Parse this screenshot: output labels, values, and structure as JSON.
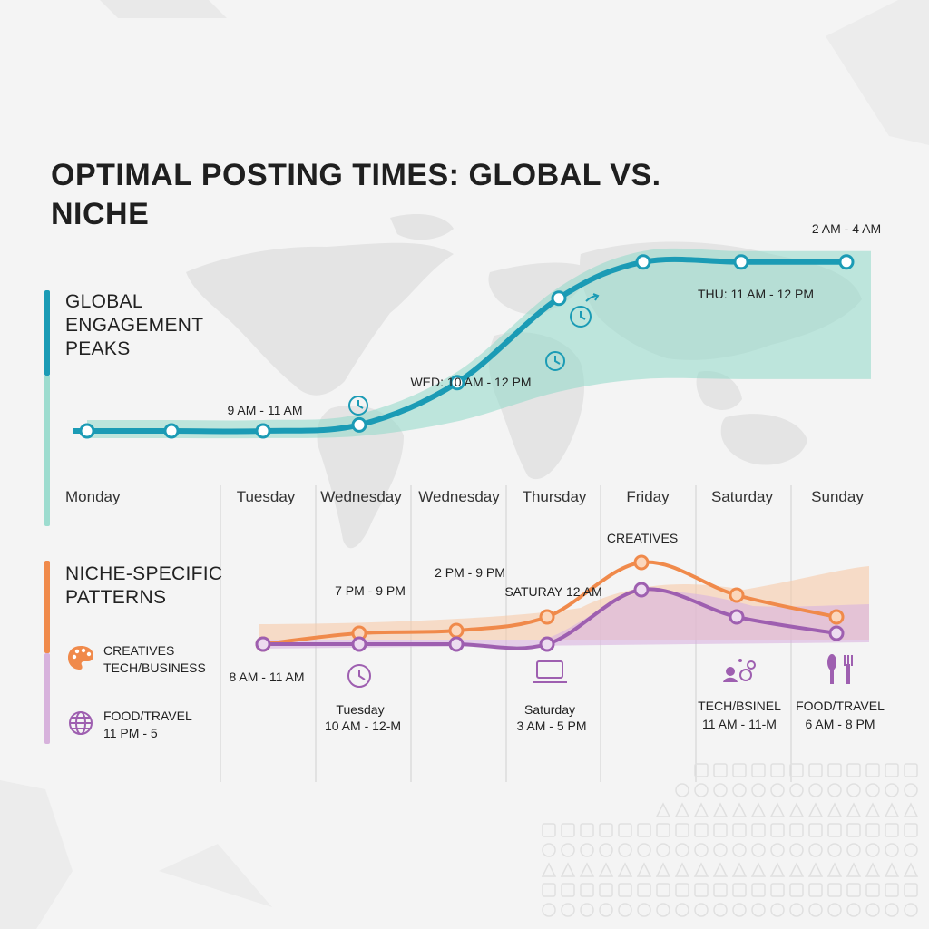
{
  "title": "OPTIMAL POSTING TIMES: GLOBAL VS. NICHE",
  "global_section": {
    "label": "GLOBAL ENGAGEMENT PEAKS",
    "accent": "#1b9bb5",
    "band": "#8fd8c8"
  },
  "niche_section": {
    "label": "NICHE-SPECIFIC PATTERNS",
    "accent": "#f08a4b",
    "accent2": "#9e5fb0"
  },
  "legend": [
    {
      "icon": "palette-icon",
      "lines": [
        "CREATIVES",
        "TECH/BUSINESS"
      ]
    },
    {
      "icon": "globe-icon",
      "lines": [
        "FOOD/TRAVEL",
        "11 PM - 5"
      ]
    }
  ],
  "chart_data": [
    {
      "type": "line",
      "title": "GLOBAL ENGAGEMENT PEAKS",
      "categories": [
        "Monday",
        "Tuesday",
        "Wednesday",
        "Wednesday",
        "Thursday",
        "Friday",
        "Saturday",
        "Sunday"
      ],
      "series": [
        {
          "values": [
            0,
            0,
            0,
            0.05,
            0.4,
            1.1,
            1.4,
            1.4
          ],
          "color": "#1b9bb5"
        }
      ],
      "annotations": [
        "9 AM - 11 AM",
        "WED: 10 AM - 12 PM",
        "THU: 11 AM - 12 PM",
        "2 AM - 4 AM"
      ],
      "grid": false
    },
    {
      "type": "line",
      "title": "NICHE-SPECIFIC PATTERNS",
      "categories": [
        "Monday",
        "Tuesday",
        "Wednesday",
        "Wednesday",
        "Thursday",
        "Friday",
        "Saturday",
        "Sunday"
      ],
      "series": [
        {
          "values": [
            0,
            0.2,
            0.25,
            0.25,
            0.5,
            1.5,
            0.9,
            0.5
          ],
          "color": "#f08a4b"
        },
        {
          "values": [
            0,
            0,
            0,
            0,
            0,
            1.0,
            0.5,
            0.2
          ],
          "color": "#9e5fb0"
        }
      ],
      "annotations": [
        "CREATIVES",
        "7 PM - 9 PM",
        "2 PM - 9 PM",
        "SATURAY 12 AM",
        "8 AM - 11 AM",
        "Tuesday",
        "10 AM - 12-M",
        "Saturday",
        "3 AM - 5 PM",
        "TECH/BSINEL",
        "11 AM - 11-M",
        "FOOD/TRAVEL",
        "6 AM - 8 PM"
      ],
      "grid": false
    }
  ],
  "day_labels": [
    "Monday",
    "Tuesday",
    "Wednesday",
    "Wednesday",
    "Thursday",
    "Friday",
    "Saturday",
    "Sunday"
  ],
  "global_labels": [
    {
      "text": "9 AM - 11 AM"
    },
    {
      "text": "WED: 10 AM - 12 PM"
    },
    {
      "text": "THU: 11 AM - 12 PM"
    },
    {
      "text": "2 AM - 4 AM"
    }
  ],
  "niche_labels": [
    {
      "text": "CREATIVES"
    },
    {
      "text": "7 PM - 9 PM"
    },
    {
      "text": "2 PM - 9 PM"
    },
    {
      "text": "SATURAY 12 AM"
    },
    {
      "text": "8 AM - 11 AM"
    }
  ],
  "callouts": [
    {
      "icon": "clock-icon",
      "lines": [
        "Tuesday",
        "10 AM - 12-M"
      ]
    },
    {
      "icon": "laptop-icon",
      "lines": [
        "Saturday",
        "3 AM - 5 PM"
      ]
    },
    {
      "icon": "people-gear-icon",
      "lines": [
        "TECH/BSINEL",
        "11 AM - 11-M"
      ]
    },
    {
      "icon": "utensils-icon",
      "lines": [
        "FOOD/TRAVEL",
        "6 AM - 8 PM"
      ]
    }
  ]
}
